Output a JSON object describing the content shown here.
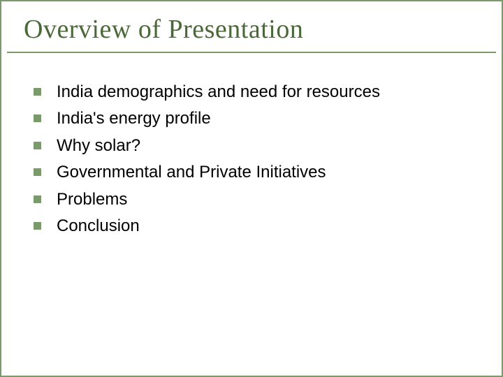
{
  "slide": {
    "title": "Overview of Presentation",
    "title_color": "#4a6838",
    "title_fontsize": 38,
    "title_font_family": "Georgia, 'Times New Roman', serif",
    "border_color": "#7a9a6b",
    "underline_color": "#7a9a6b",
    "background_color": "#ffffff",
    "bullets": [
      {
        "text": "India demographics and need for resources"
      },
      {
        "text": "India's energy profile"
      },
      {
        "text": "Why solar?"
      },
      {
        "text": "Governmental and Private Initiatives"
      },
      {
        "text": "Problems"
      },
      {
        "text": "Conclusion"
      }
    ],
    "bullet_marker_color": "#7a9a6b",
    "bullet_marker_size": 11,
    "bullet_text_color": "#000000",
    "bullet_fontsize": 24,
    "bullet_font_family": "Arial, Helvetica, sans-serif"
  }
}
